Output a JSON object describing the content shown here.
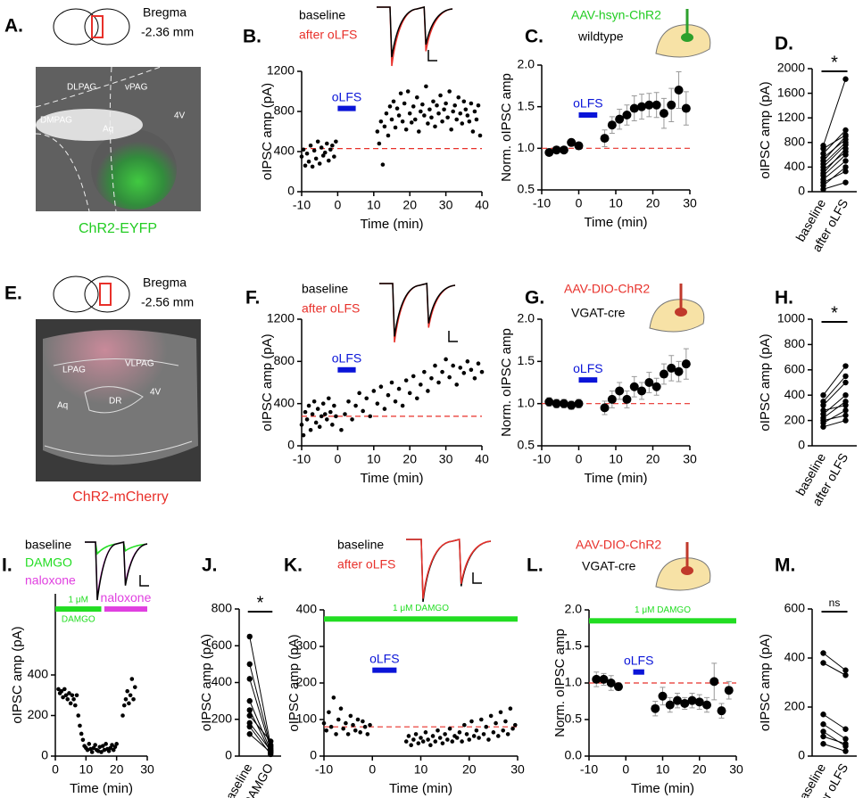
{
  "images": [
    {
      "panel": "A.",
      "bregma": "Bregma",
      "level": "-2.36 mm",
      "regions": [
        "DLPAG",
        "vPAG",
        "DMPAG",
        "Aq",
        "4V"
      ],
      "label": "ChR2-EYFP",
      "label_color": "#22cc22"
    },
    {
      "panel": "E.",
      "bregma": "Bregma",
      "level": "-2.56 mm",
      "regions": [
        "LPAG",
        "VLPAG",
        "Aq",
        "DR",
        "4V"
      ],
      "label": "ChR2-mCherry",
      "label_color": "#e8302a"
    }
  ],
  "chart_data": [
    {
      "type": "scatter",
      "panel": "B.",
      "xlabel": "Time (min)",
      "ylabel": "oIPSC amp (pA)",
      "xlim": [
        -10,
        40
      ],
      "xticks": [
        -10,
        0,
        10,
        20,
        30,
        40
      ],
      "ylim": [
        0,
        1200
      ],
      "yticks": [
        0,
        400,
        800,
        1200
      ],
      "legend": [
        {
          "name": "baseline",
          "color": "#000000"
        },
        {
          "name": "after oLFS",
          "color": "#e8302a"
        }
      ],
      "ref": 430,
      "ref_color": "#e8302a",
      "bars": [
        {
          "label": "oLFS",
          "color": "#0a14d8",
          "x": [
            0,
            5
          ],
          "y": 830
        }
      ],
      "color": "#000000",
      "x": [
        -10,
        -9.5,
        -9,
        -8.5,
        -8,
        -7.5,
        -7,
        -6.5,
        -6,
        -5.5,
        -5,
        -4.5,
        -4,
        -3.5,
        -3,
        -2.5,
        -2,
        -1.5,
        -1,
        -0.5,
        11,
        11.5,
        12,
        12.5,
        13,
        13.5,
        14,
        14.5,
        15,
        15.5,
        16,
        16.5,
        17,
        17.5,
        18,
        18.5,
        19,
        19.5,
        20,
        20.5,
        21,
        21.5,
        22,
        22.5,
        23,
        23.5,
        24,
        24.5,
        25,
        25.5,
        26,
        26.5,
        27,
        27.5,
        28,
        28.5,
        29,
        29.5,
        30,
        30.5,
        31,
        31.5,
        32,
        32.5,
        33,
        33.5,
        34,
        34.5,
        35,
        35.5,
        36,
        36.5,
        37,
        37.5,
        38,
        38.5,
        39,
        39.5
      ],
      "values": [
        350,
        420,
        260,
        380,
        300,
        460,
        250,
        410,
        330,
        500,
        280,
        440,
        360,
        390,
        480,
        310,
        420,
        460,
        350,
        500,
        600,
        480,
        700,
        270,
        650,
        780,
        560,
        850,
        720,
        900,
        640,
        830,
        760,
        980,
        700,
        880,
        620,
        1000,
        780,
        690,
        850,
        720,
        940,
        600,
        800,
        870,
        760,
        1050,
        680,
        820,
        740,
        900,
        650,
        860,
        780,
        960,
        700,
        820,
        880,
        740,
        1000,
        620,
        800,
        860,
        720,
        940,
        780,
        680,
        900,
        820,
        760,
        700,
        880,
        600,
        800,
        720,
        860,
        560
      ]
    },
    {
      "type": "scatter",
      "panel": "C.",
      "xlabel": "Time (min)",
      "ylabel": "Norm. oIPSC amp",
      "xlim": [
        -10,
        30
      ],
      "xticks": [
        -10,
        0,
        10,
        20,
        30
      ],
      "ylim": [
        0.5,
        2
      ],
      "yticks": [
        0.5,
        {
          "value": 1,
          "label": "1.0"
        },
        1.5,
        {
          "value": 2,
          "label": "2.0"
        }
      ],
      "annotations": [
        {
          "text": "AAV-hsyn-ChR2",
          "color": "#22cc22"
        },
        {
          "text": "wildtype",
          "color": "#000000"
        }
      ],
      "ref": 1,
      "ref_color": "#e8302a",
      "bars": [
        {
          "label": "oLFS",
          "color": "#0a14d8",
          "x": [
            0,
            5
          ],
          "y": 1.4
        }
      ],
      "color": "#000000",
      "x": [
        -8,
        -6,
        -4,
        -2,
        0,
        7,
        9,
        11,
        13,
        15,
        17,
        19,
        21,
        23,
        25,
        27,
        29
      ],
      "values": [
        0.95,
        0.98,
        0.98,
        1.07,
        1.03,
        1.12,
        1.28,
        1.35,
        1.4,
        1.48,
        1.5,
        1.52,
        1.52,
        1.42,
        1.52,
        1.7,
        1.48
      ],
      "errors": [
        0.03,
        0.03,
        0.03,
        0.04,
        0.04,
        0.1,
        0.1,
        0.12,
        0.12,
        0.15,
        0.15,
        0.14,
        0.15,
        0.18,
        0.2,
        0.22,
        0.2
      ]
    },
    {
      "type": "paired",
      "panel": "D.",
      "ylabel": "oIPSC amp (pA)",
      "categories": [
        "baseline",
        "after oLFS"
      ],
      "ylim": [
        0,
        2000
      ],
      "yticks": [
        0,
        400,
        800,
        1200,
        1600,
        2000
      ],
      "sig": "*",
      "color": "#000000",
      "pairs": [
        [
          40,
          150
        ],
        [
          100,
          400
        ],
        [
          150,
          330
        ],
        [
          200,
          500
        ],
        [
          260,
          600
        ],
        [
          300,
          700
        ],
        [
          350,
          650
        ],
        [
          400,
          760
        ],
        [
          450,
          800
        ],
        [
          500,
          900
        ],
        [
          550,
          850
        ],
        [
          620,
          1000
        ],
        [
          700,
          920
        ],
        [
          750,
          1830
        ]
      ]
    },
    {
      "type": "scatter",
      "panel": "F.",
      "xlabel": "Time (min)",
      "ylabel": "oIPSC amp (pA)",
      "xlim": [
        -10,
        40
      ],
      "xticks": [
        -10,
        0,
        10,
        20,
        30,
        40
      ],
      "ylim": [
        0,
        1200
      ],
      "yticks": [
        0,
        400,
        800,
        1200
      ],
      "legend": [
        {
          "name": "baseline",
          "color": "#000000"
        },
        {
          "name": "after oLFS",
          "color": "#e8302a"
        }
      ],
      "ref": 280,
      "ref_color": "#e8302a",
      "bars": [
        {
          "label": "oLFS",
          "color": "#0a14d8",
          "x": [
            0,
            5
          ],
          "y": 720
        }
      ],
      "color": "#000000",
      "x": [
        -10,
        -9.5,
        -9,
        -8.5,
        -8,
        -7.5,
        -7,
        -6.5,
        -6,
        -5.5,
        -5,
        -4.5,
        -4,
        -3.5,
        -3,
        -2.5,
        -2,
        -1.5,
        -1,
        -0.5,
        1,
        2,
        3,
        4,
        5,
        6,
        7,
        8,
        9,
        10,
        11,
        12,
        13,
        14,
        15,
        16,
        17,
        18,
        19,
        20,
        21,
        22,
        23,
        24,
        25,
        26,
        27,
        28,
        29,
        30,
        31,
        32,
        33,
        34,
        35,
        36,
        37,
        38,
        39,
        40
      ],
      "values": [
        200,
        100,
        320,
        250,
        380,
        150,
        300,
        420,
        220,
        350,
        180,
        280,
        400,
        300,
        250,
        450,
        320,
        200,
        380,
        280,
        150,
        300,
        420,
        250,
        380,
        500,
        330,
        450,
        280,
        520,
        400,
        560,
        350,
        480,
        600,
        420,
        540,
        380,
        620,
        500,
        660,
        450,
        580,
        700,
        520,
        640,
        760,
        600,
        700,
        820,
        650,
        760,
        580,
        740,
        690,
        800,
        720,
        640,
        780,
        700
      ]
    },
    {
      "type": "scatter",
      "panel": "G.",
      "xlabel": "Time (min)",
      "ylabel": "Norm. oIPSC amp",
      "xlim": [
        -10,
        30
      ],
      "xticks": [
        -10,
        0,
        10,
        20,
        30
      ],
      "ylim": [
        0.5,
        2
      ],
      "yticks": [
        0.5,
        {
          "value": 1,
          "label": "1.0"
        },
        1.5,
        {
          "value": 2,
          "label": "2.0"
        }
      ],
      "annotations": [
        {
          "text": "AAV-DIO-ChR2",
          "color": "#e8302a"
        },
        {
          "text": "VGAT-cre",
          "color": "#000000"
        }
      ],
      "ref": 1,
      "ref_color": "#e8302a",
      "bars": [
        {
          "label": "oLFS",
          "color": "#0a14d8",
          "x": [
            0,
            5
          ],
          "y": 1.28
        }
      ],
      "color": "#000000",
      "x": [
        -8,
        -6,
        -4,
        -2,
        0,
        7,
        9,
        11,
        13,
        15,
        17,
        19,
        21,
        23,
        25,
        27,
        29
      ],
      "values": [
        1.02,
        1.0,
        1.0,
        0.98,
        1.0,
        0.95,
        1.05,
        1.15,
        1.05,
        1.2,
        1.15,
        1.25,
        1.2,
        1.35,
        1.42,
        1.38,
        1.47
      ],
      "errors": [
        0.05,
        0.05,
        0.05,
        0.05,
        0.05,
        0.08,
        0.1,
        0.1,
        0.1,
        0.12,
        0.1,
        0.12,
        0.1,
        0.12,
        0.15,
        0.12,
        0.18
      ]
    },
    {
      "type": "paired",
      "panel": "H.",
      "ylabel": "oIPSC amp (pA)",
      "categories": [
        "baseline",
        "after oLFS"
      ],
      "ylim": [
        0,
        1000
      ],
      "yticks": [
        0,
        200,
        400,
        600,
        800,
        1000
      ],
      "sig": "*",
      "color": "#000000",
      "pairs": [
        [
          150,
          200
        ],
        [
          180,
          280
        ],
        [
          200,
          240
        ],
        [
          220,
          350
        ],
        [
          250,
          400
        ],
        [
          280,
          320
        ],
        [
          320,
          500
        ],
        [
          350,
          550
        ],
        [
          400,
          630
        ]
      ]
    },
    {
      "type": "scatter",
      "panel": "I.",
      "xlabel": "Time (min)",
      "ylabel": "oIPSC amp (pA)",
      "xlim": [
        0,
        30
      ],
      "xticks": [
        0,
        10,
        20,
        30
      ],
      "ylim": [
        0,
        800
      ],
      "yticks": [
        0,
        200,
        400
      ],
      "legend": [
        {
          "name": "baseline",
          "color": "#000000"
        },
        {
          "name": "DAMGO",
          "color": "#22dd22"
        },
        {
          "name": "naloxone",
          "color": "#e040e0"
        }
      ],
      "bars": [
        {
          "label": [
            "1 μM",
            "DAMGO"
          ],
          "color": "#22dd22",
          "x": [
            0,
            15
          ],
          "y": 725
        },
        {
          "label": "naloxone",
          "color": "#e040e0",
          "x": [
            16,
            30
          ],
          "y": 725
        }
      ],
      "color": "#000000",
      "x": [
        1,
        1.5,
        2,
        2.5,
        3,
        3.5,
        4,
        4.5,
        5,
        5.5,
        6,
        6.5,
        7,
        7.5,
        8,
        8.5,
        9,
        9.5,
        10,
        10.5,
        11,
        11.5,
        12,
        12.5,
        13,
        13.5,
        14,
        14.5,
        15,
        15.5,
        16,
        16.5,
        17,
        17.5,
        18,
        18.5,
        19,
        19.5,
        20,
        22,
        22.5,
        23,
        23.5,
        24,
        24.5,
        25,
        25.5,
        26
      ],
      "values": [
        330,
        310,
        320,
        290,
        330,
        300,
        280,
        310,
        260,
        300,
        280,
        250,
        300,
        200,
        150,
        110,
        80,
        50,
        40,
        30,
        60,
        35,
        20,
        40,
        55,
        30,
        25,
        45,
        20,
        50,
        30,
        60,
        35,
        25,
        40,
        55,
        30,
        45,
        60,
        200,
        250,
        280,
        320,
        260,
        300,
        380,
        280,
        340
      ]
    },
    {
      "type": "paired",
      "panel": "J.",
      "ylabel": "oIPSC amp (pA)",
      "categories": [
        "baseline",
        "DAMGO"
      ],
      "ylim": [
        0,
        800
      ],
      "yticks": [
        0,
        200,
        400,
        600,
        800
      ],
      "sig": "*",
      "color": "#000000",
      "pairs": [
        [
          650,
          60
        ],
        [
          500,
          50
        ],
        [
          420,
          40
        ],
        [
          300,
          30
        ],
        [
          250,
          20
        ],
        [
          220,
          80
        ],
        [
          180,
          30
        ],
        [
          160,
          10
        ],
        [
          120,
          20
        ]
      ]
    },
    {
      "type": "scatter",
      "panel": "K.",
      "xlabel": "Time (min)",
      "ylabel": "oIPSC amp (pA)",
      "xlim": [
        -10,
        30
      ],
      "xticks": [
        -10,
        0,
        10,
        20,
        30
      ],
      "ylim": [
        0,
        400
      ],
      "yticks": [
        0,
        100,
        200,
        300,
        400
      ],
      "legend": [
        {
          "name": "baseline",
          "color": "#000000"
        },
        {
          "name": "after oLFS",
          "color": "#e8302a"
        }
      ],
      "ref": 80,
      "ref_color": "#e8302a",
      "bars": [
        {
          "label": "1 μM DAMGO",
          "color": "#22dd22",
          "x": [
            -10,
            30
          ],
          "y": 375
        },
        {
          "label": "oLFS",
          "color": "#0a14d8",
          "x": [
            0,
            5
          ],
          "y": 235
        }
      ],
      "color": "#000000",
      "x": [
        -10,
        -9.5,
        -9,
        -8.5,
        -8,
        -7.5,
        -7,
        -6.5,
        -6,
        -5.5,
        -5,
        -4.5,
        -4,
        -3.5,
        -3,
        -2.5,
        -2,
        -1.5,
        -1,
        -0.5,
        7,
        7.5,
        8,
        8.5,
        9,
        9.5,
        10,
        10.5,
        11,
        11.5,
        12,
        12.5,
        13,
        13.5,
        14,
        14.5,
        15,
        15.5,
        16,
        16.5,
        17,
        17.5,
        18,
        18.5,
        19,
        19.5,
        20,
        20.5,
        21,
        21.5,
        22,
        22.5,
        23,
        23.5,
        24,
        24.5,
        25,
        25.5,
        26,
        26.5,
        27,
        27.5,
        28,
        28.5,
        29,
        29.5
      ],
      "values": [
        90,
        70,
        120,
        80,
        160,
        60,
        100,
        130,
        75,
        90,
        60,
        110,
        85,
        70,
        100,
        65,
        95,
        80,
        60,
        85,
        40,
        55,
        30,
        45,
        60,
        35,
        50,
        40,
        65,
        45,
        30,
        55,
        40,
        70,
        50,
        35,
        60,
        45,
        75,
        40,
        55,
        50,
        65,
        40,
        85,
        60,
        45,
        95,
        55,
        70,
        50,
        100,
        60,
        80,
        45,
        110,
        65,
        90,
        55,
        120,
        70,
        95,
        60,
        130,
        75,
        85
      ]
    },
    {
      "type": "scatter",
      "panel": "L.",
      "xlabel": "Time (min)",
      "ylabel": "Norm. oIPSC amp",
      "xlim": [
        -10,
        30
      ],
      "xticks": [
        -10,
        0,
        10,
        20,
        30
      ],
      "ylim": [
        0,
        2
      ],
      "yticks": [
        {
          "value": 0,
          "label": "0.0"
        },
        0.5,
        {
          "value": 1,
          "label": "1.0"
        },
        1.5,
        {
          "value": 2,
          "label": "2.0"
        }
      ],
      "annotations": [
        {
          "text": "AAV-DIO-ChR2",
          "color": "#e8302a"
        },
        {
          "text": "VGAT-cre",
          "color": "#000000"
        }
      ],
      "ref": 1,
      "ref_color": "#e8302a",
      "bars": [
        {
          "label": "1 μM DAMGO",
          "color": "#22dd22",
          "x": [
            -10,
            30
          ],
          "y": 1.85
        },
        {
          "label": "oLFS",
          "color": "#0a14d8",
          "x": [
            2,
            5
          ],
          "y": 1.15
        }
      ],
      "color": "#000000",
      "x": [
        -8,
        -6,
        -4,
        -2,
        8,
        10,
        12,
        14,
        16,
        18,
        20,
        22,
        24,
        26,
        28
      ],
      "values": [
        1.05,
        1.05,
        1.0,
        0.95,
        0.65,
        0.82,
        0.7,
        0.76,
        0.72,
        0.76,
        0.74,
        0.7,
        1.02,
        0.62,
        0.9
      ],
      "errors": [
        0.1,
        0.08,
        0.1,
        0.05,
        0.1,
        0.12,
        0.1,
        0.1,
        0.08,
        0.1,
        0.1,
        0.1,
        0.25,
        0.1,
        0.12
      ]
    },
    {
      "type": "paired",
      "panel": "M.",
      "ylabel": "oIPSC amp (pA)",
      "categories": [
        "baseline",
        "after oLFS"
      ],
      "ylim": [
        0,
        600
      ],
      "yticks": [
        0,
        200,
        400,
        600
      ],
      "sig": "ns",
      "color": "#000000",
      "pairs": [
        [
          420,
          350
        ],
        [
          380,
          330
        ],
        [
          170,
          110
        ],
        [
          130,
          70
        ],
        [
          100,
          40
        ],
        [
          80,
          50
        ],
        [
          50,
          20
        ]
      ]
    }
  ]
}
